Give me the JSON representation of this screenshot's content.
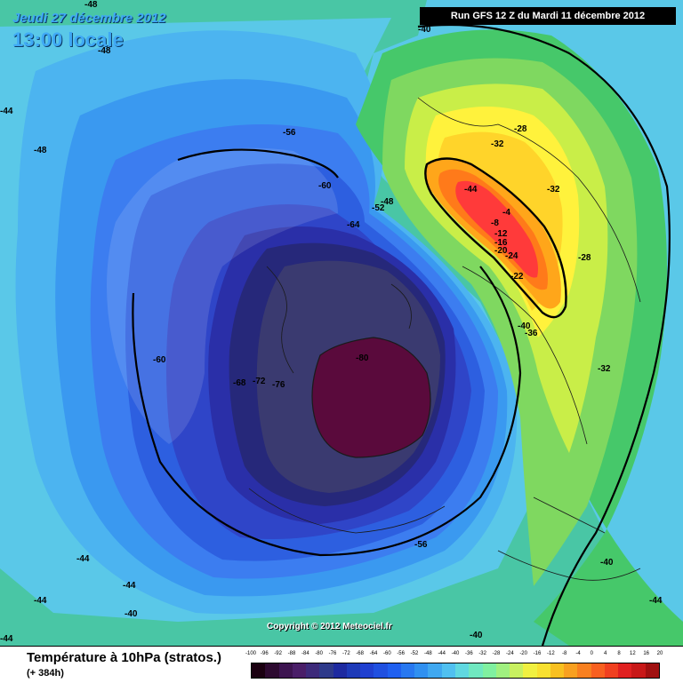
{
  "header": {
    "date": "Jeudi 27 décembre 2012",
    "time": "13:00 locale",
    "run": "Run GFS 12 Z du Mardi 11 décembre 2012"
  },
  "footer": {
    "parameter": "Température à 10hPa (stratos.)",
    "lead": "(+ 384h)",
    "copyright": "Copyright © 2012 Meteociel.fr"
  },
  "contour_labels": [
    {
      "text": "-48"
    },
    {
      "text": "-48"
    },
    {
      "text": "-44"
    },
    {
      "text": "-48"
    },
    {
      "text": "-40"
    },
    {
      "text": "-56"
    },
    {
      "text": "-60"
    },
    {
      "text": "-64"
    },
    {
      "text": "-52"
    },
    {
      "text": "-48"
    },
    {
      "text": "-28"
    },
    {
      "text": "-32"
    },
    {
      "text": "-32"
    },
    {
      "text": "-44"
    },
    {
      "text": "-4"
    },
    {
      "text": "-8"
    },
    {
      "text": "-12"
    },
    {
      "text": "-16"
    },
    {
      "text": "-20"
    },
    {
      "text": "-24"
    },
    {
      "text": "-22"
    },
    {
      "text": "-36"
    },
    {
      "text": "-40"
    },
    {
      "text": "-28"
    },
    {
      "text": "-32"
    },
    {
      "text": "-60"
    },
    {
      "text": "-68"
    },
    {
      "text": "-72"
    },
    {
      "text": "-76"
    },
    {
      "text": "-80"
    },
    {
      "text": "-56"
    },
    {
      "text": "-40"
    },
    {
      "text": "-44"
    },
    {
      "text": "-44"
    },
    {
      "text": "-44"
    },
    {
      "text": "-40"
    },
    {
      "text": "-44"
    },
    {
      "text": "-40"
    },
    {
      "text": "-44"
    }
  ],
  "scale": {
    "ticks": [
      "-100",
      "-96",
      "-92",
      "-88",
      "-84",
      "-80",
      "-76",
      "-72",
      "-68",
      "-64",
      "-60",
      "-56",
      "-52",
      "-48",
      "-44",
      "-40",
      "-36",
      "-32",
      "-28",
      "-24",
      "-20",
      "-16",
      "-12",
      "-8",
      "-4",
      "0",
      "4",
      "8",
      "12",
      "16",
      "20"
    ],
    "colors": [
      "#1a0010",
      "#2d0a30",
      "#3d1450",
      "#4a1e68",
      "#3d2a7a",
      "#2e3a8a",
      "#1e2aa0",
      "#1e3ab8",
      "#2040d0",
      "#2050e0",
      "#2060f0",
      "#2878f0",
      "#3090f0",
      "#40a8f0",
      "#50c0f0",
      "#60d8e0",
      "#70e8c0",
      "#80f0a0",
      "#a0f080",
      "#c8f060",
      "#f0f040",
      "#f8e030",
      "#f8c020",
      "#f8a020",
      "#f88020",
      "#f86020",
      "#f04020",
      "#e02020",
      "#c81818",
      "#a01010"
    ]
  },
  "colors": {
    "c80": "#5a0a3c",
    "c76": "#3a3a70",
    "c72": "#26287a",
    "c68": "#2a2fa8",
    "c64": "#2f45c8",
    "c60": "#2d5fe0",
    "c56": "#3c7df0",
    "c52": "#3a99f0",
    "c48": "#4cb4f0",
    "c44": "#5ac8e8",
    "c40": "#49c6a5",
    "c36": "#46c86a",
    "c32": "#7fd860",
    "c28": "#c9ee48",
    "c24": "#fff23c",
    "c20": "#ffd42a",
    "c12": "#ffa61a",
    "c8": "#ff7a1a",
    "c4": "#ff3a3a",
    "land": "#ffffff"
  }
}
